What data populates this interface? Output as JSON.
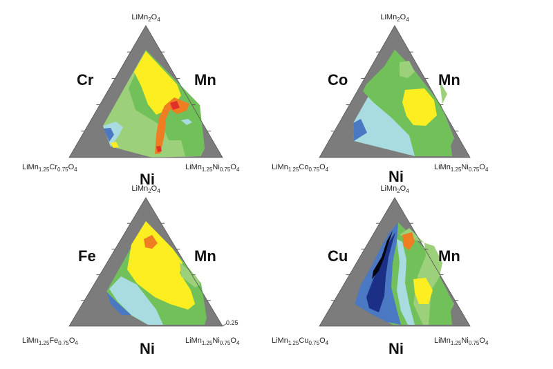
{
  "colors": {
    "frame": "#7c7c7c",
    "ticks": "#555555",
    "level_green": "#72c05a",
    "level_light_green": "#9dd07a",
    "level_yellow": "#fcee21",
    "level_orange": "#ef7d22",
    "level_red": "#e0302a",
    "level_light_cyan": "#a8dce0",
    "level_blue": "#4a78c2",
    "level_dark_blue": "#1b2f86",
    "level_black": "#050510"
  },
  "plots": [
    {
      "id": "cr",
      "top_label": "LiMn2O4",
      "left_label": "LiMn1.25Cr0.75O4",
      "right_label": "LiMn1.25Ni0.75O4",
      "left_side": "Cr",
      "right_side": "Mn",
      "bottom_side": "Ni"
    },
    {
      "id": "co",
      "top_label": "LiMn2O4",
      "left_label": "LiMn1.25Co0.75O4",
      "right_label": "LiMn1.25Ni0.75O4",
      "left_side": "Co",
      "right_side": "Mn",
      "bottom_side": "Ni"
    },
    {
      "id": "fe",
      "top_label": "LiMn2O4",
      "left_label": "LiMn1.25Fe0.75O4",
      "right_label": "LiMn1.25Ni0.75O4",
      "left_side": "Fe",
      "right_side": "Mn",
      "bottom_side": "Ni",
      "tick_label": "0.25"
    },
    {
      "id": "cu",
      "top_label": "LiMn2O4",
      "left_label": "LiMn1.25Cu0.75O4",
      "right_label": "LiMn1.25Ni0.75O4",
      "left_side": "Cu",
      "right_side": "Mn",
      "bottom_side": "Ni"
    }
  ]
}
